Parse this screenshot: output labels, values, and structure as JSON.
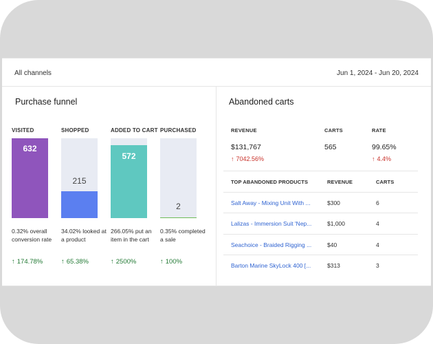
{
  "header": {
    "channel_filter": "All channels",
    "date_range": "Jun 1, 2024 - Jun 20, 2024"
  },
  "funnel": {
    "title": "Purchase funnel",
    "stages": [
      {
        "label": "VISITED",
        "value": "632",
        "fill_fraction": 1.0,
        "color": "#8f55bc",
        "description": "0.32% overall conversion rate",
        "change": "174.78%"
      },
      {
        "label": "SHOPPED",
        "value": "215",
        "fill_fraction": 0.34,
        "color": "#5b7ff0",
        "description": "34.02% looked at a product",
        "change": "65.38%"
      },
      {
        "label": "ADDED TO CART",
        "value": "572",
        "fill_fraction": 0.91,
        "color": "#5fc8c0",
        "description": "266.05% put an item in the cart",
        "change": "2500%"
      },
      {
        "label": "PURCHASED",
        "value": "2",
        "fill_fraction": 0.005,
        "color": "#6dbb57",
        "description": "0.35% completed a sale",
        "change": "100%"
      }
    ]
  },
  "abandoned": {
    "title": "Abandoned carts",
    "revenue_label": "REVENUE",
    "revenue_value": "$131,767",
    "revenue_change": "7042.56%",
    "carts_label": "CARTS",
    "carts_value": "565",
    "rate_label": "RATE",
    "rate_value": "99.65%",
    "rate_change": "4.4%",
    "table": {
      "headers": [
        "TOP ABANDONED PRODUCTS",
        "REVENUE",
        "CARTS"
      ],
      "rows": [
        {
          "product": "Salt Away - Mixing Unit With ...",
          "revenue": "$300",
          "carts": "6"
        },
        {
          "product": "Lalizas - Immersion Suit 'Nep...",
          "revenue": "$1,000",
          "carts": "4"
        },
        {
          "product": "Seachoice - Braided Rigging ...",
          "revenue": "$40",
          "carts": "4"
        },
        {
          "product": "Barton Marine SkyLock 400 [...",
          "revenue": "$313",
          "carts": "3"
        }
      ]
    }
  },
  "colors": {
    "positive": "#237a35",
    "negative": "#c8312a",
    "link": "#2f63d1",
    "track": "#e8ebf3"
  }
}
